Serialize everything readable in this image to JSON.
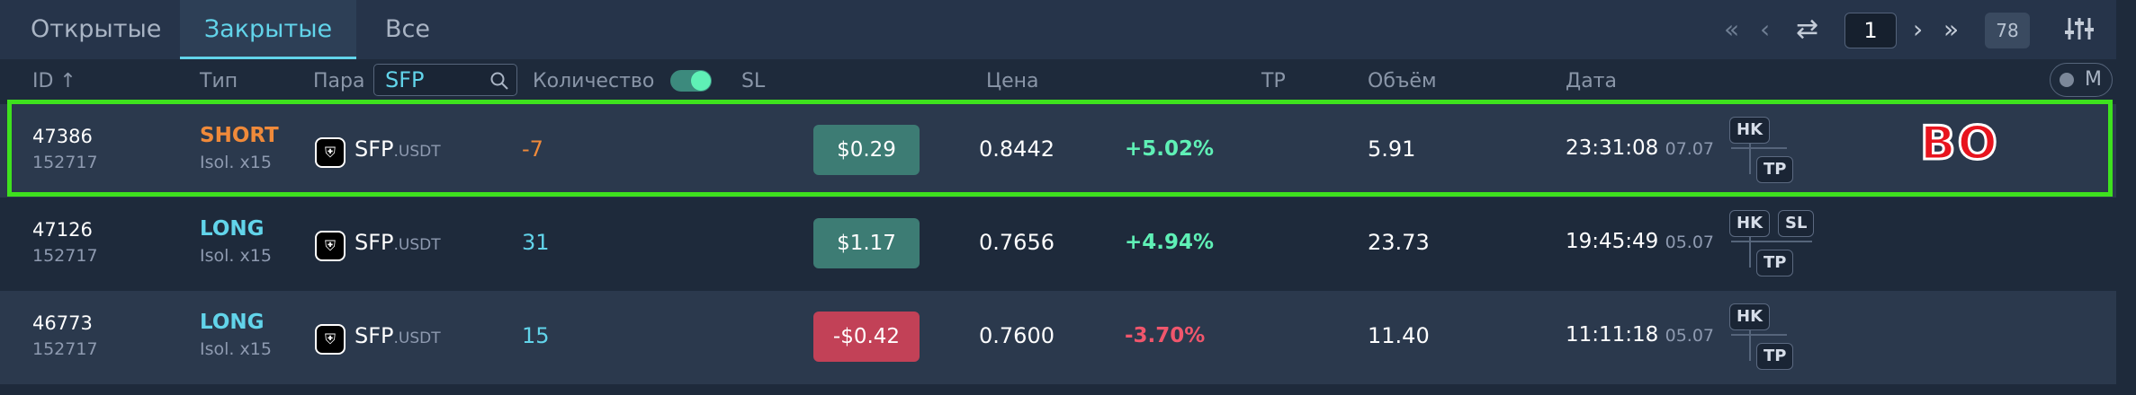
{
  "tabs": [
    {
      "label": "Открытые",
      "active": false
    },
    {
      "label": "Закрытые",
      "active": true
    },
    {
      "label": "Все",
      "active": false
    }
  ],
  "pagination": {
    "first_icon": "double-chevron-left-icon",
    "prev_icon": "chevron-left-icon",
    "refresh_icon": "repeat-icon",
    "page": "1",
    "next_icon": "chevron-right-icon",
    "last_icon": "double-chevron-right-icon",
    "total": "78",
    "settings_icon": "filter-sliders-icon"
  },
  "header": {
    "id": "ID ↑",
    "type": "Тип",
    "pair": "Пара",
    "pair_filter": "SFP",
    "quantity": "Количество",
    "quantity_toggle_on": true,
    "sl": "SL",
    "price": "Цена",
    "tp": "TP",
    "volume": "Объём",
    "date": "Дата",
    "m_toggle": "M"
  },
  "rows": [
    {
      "id": "47386",
      "sub_id": "152717",
      "type": "SHORT",
      "leverage": "Isol. x15",
      "coin_icon": "shield-coin-icon",
      "base": "SFP",
      "quote": ".USDT",
      "qty": "-7",
      "pnl": "$0.29",
      "price": "0.8442",
      "pct": "+5.02%",
      "volume": "5.91",
      "time": "23:31:08",
      "date": "07.07",
      "badges": [
        "HK",
        "TP"
      ],
      "selected": true
    },
    {
      "id": "47126",
      "sub_id": "152717",
      "type": "LONG",
      "leverage": "Isol. x15",
      "coin_icon": "shield-coin-icon",
      "base": "SFP",
      "quote": ".USDT",
      "qty": "31",
      "pnl": "$1.17",
      "price": "0.7656",
      "pct": "+4.94%",
      "volume": "23.73",
      "time": "19:45:49",
      "date": "05.07",
      "badges": [
        "HK",
        "SL",
        "TP"
      ],
      "selected": false
    },
    {
      "id": "46773",
      "sub_id": "152717",
      "type": "LONG",
      "leverage": "Isol. x15",
      "coin_icon": "shield-coin-icon",
      "base": "SFP",
      "quote": ".USDT",
      "qty": "15",
      "pnl": "-$0.42",
      "price": "0.7600",
      "pct": "-3.70%",
      "volume": "11.40",
      "time": "11:11:18",
      "date": "05.07",
      "badges": [
        "HK",
        "TP"
      ],
      "selected": false
    }
  ],
  "annotation": "BO",
  "colors": {
    "accent": "#62d4ea",
    "positive": "#5ff0b6",
    "negative": "#f0566c",
    "short": "#f08a3a",
    "profit_bg": "#3d7c74",
    "loss_bg": "#c24157",
    "highlight_frame": "#3ee11e"
  }
}
